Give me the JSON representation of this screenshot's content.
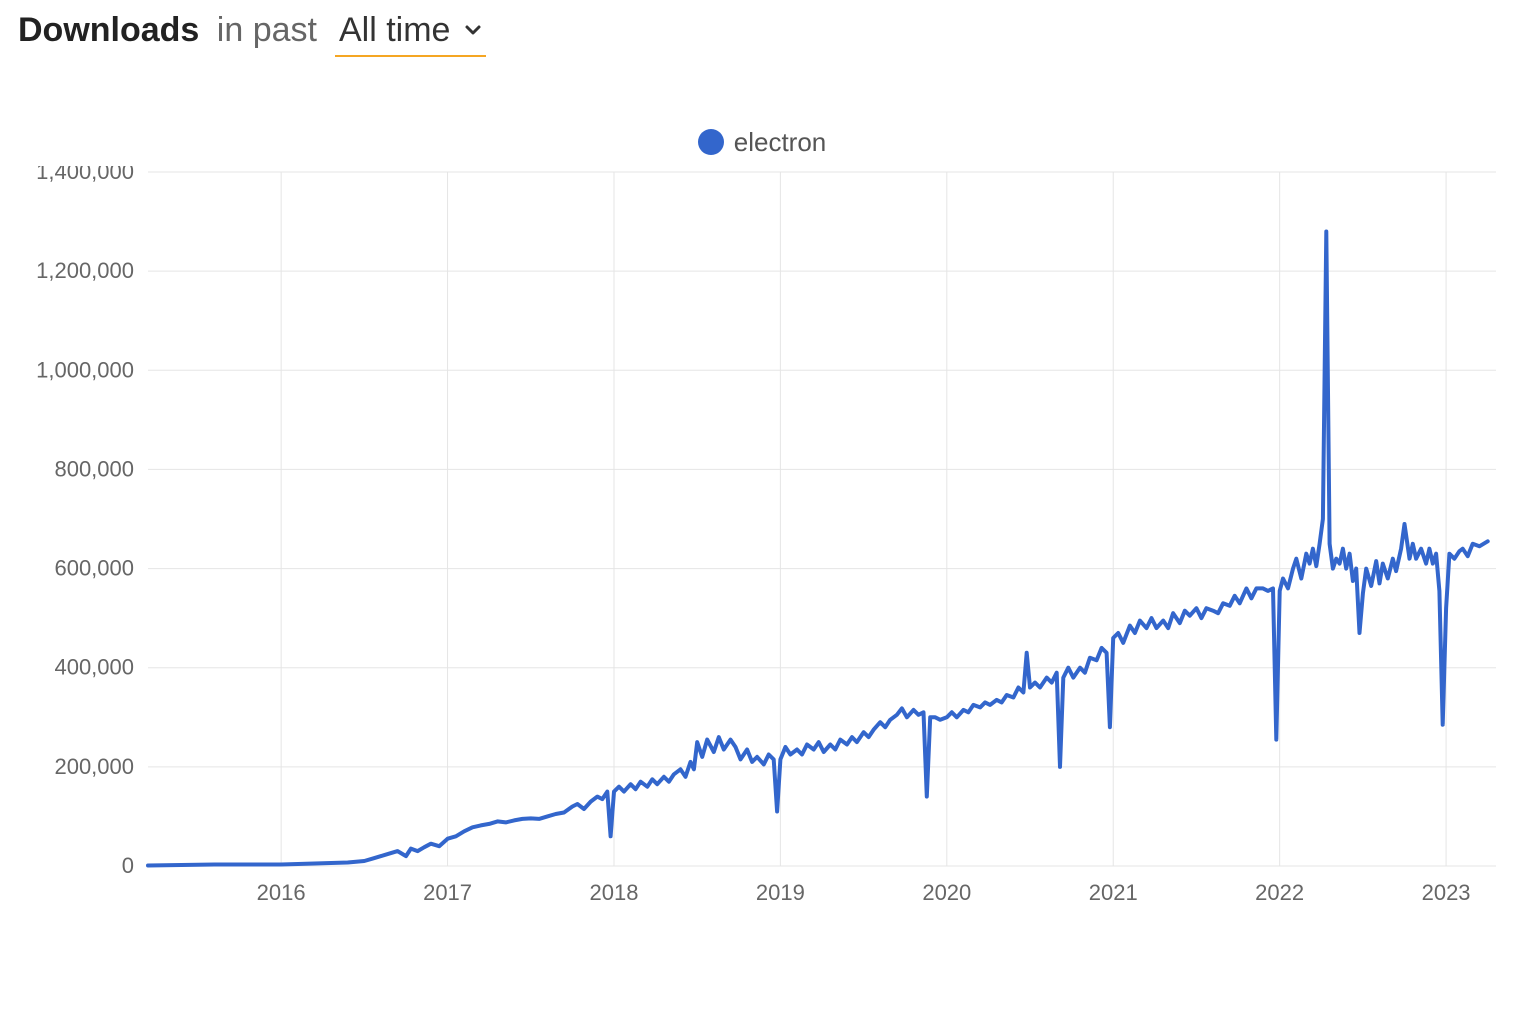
{
  "header": {
    "title_strong": "Downloads",
    "title_light": "in past",
    "dropdown_label": "All time"
  },
  "legend": {
    "items": [
      {
        "label": "electron",
        "color": "#3366cc"
      }
    ]
  },
  "chart": {
    "type": "line",
    "background_color": "#ffffff",
    "grid_color": "#e5e5e5",
    "axis_text_color": "#666666",
    "axis_fontsize": 22,
    "line_color": "#3366cc",
    "line_width": 4,
    "accent_underline_color": "#f5a623",
    "x": {
      "min": 2015.2,
      "max": 2023.3,
      "ticks": [
        2016,
        2017,
        2018,
        2019,
        2020,
        2021,
        2022,
        2023
      ],
      "tick_labels": [
        "2016",
        "2017",
        "2018",
        "2019",
        "2020",
        "2021",
        "2022",
        "2023"
      ]
    },
    "y": {
      "min": 0,
      "max": 1400000,
      "ticks": [
        0,
        200000,
        400000,
        600000,
        800000,
        1000000,
        1200000,
        1400000
      ],
      "tick_labels": [
        "0",
        "200,000",
        "400,000",
        "600,000",
        "800,000",
        "1,000,000",
        "1,200,000",
        "1,400,000"
      ]
    },
    "series": [
      {
        "name": "electron",
        "color": "#3366cc",
        "points": [
          [
            2015.2,
            1000
          ],
          [
            2015.3,
            1500
          ],
          [
            2015.4,
            2000
          ],
          [
            2015.5,
            2500
          ],
          [
            2015.6,
            3000
          ],
          [
            2015.7,
            3000
          ],
          [
            2015.8,
            3000
          ],
          [
            2015.9,
            3000
          ],
          [
            2016.0,
            3000
          ],
          [
            2016.1,
            4000
          ],
          [
            2016.2,
            5000
          ],
          [
            2016.3,
            6000
          ],
          [
            2016.4,
            7000
          ],
          [
            2016.5,
            10000
          ],
          [
            2016.55,
            15000
          ],
          [
            2016.6,
            20000
          ],
          [
            2016.65,
            25000
          ],
          [
            2016.7,
            30000
          ],
          [
            2016.75,
            20000
          ],
          [
            2016.78,
            35000
          ],
          [
            2016.82,
            30000
          ],
          [
            2016.86,
            38000
          ],
          [
            2016.9,
            45000
          ],
          [
            2016.95,
            40000
          ],
          [
            2017.0,
            55000
          ],
          [
            2017.05,
            60000
          ],
          [
            2017.1,
            70000
          ],
          [
            2017.15,
            78000
          ],
          [
            2017.2,
            82000
          ],
          [
            2017.25,
            85000
          ],
          [
            2017.3,
            90000
          ],
          [
            2017.35,
            88000
          ],
          [
            2017.4,
            92000
          ],
          [
            2017.45,
            95000
          ],
          [
            2017.5,
            96000
          ],
          [
            2017.55,
            95000
          ],
          [
            2017.6,
            100000
          ],
          [
            2017.65,
            105000
          ],
          [
            2017.7,
            108000
          ],
          [
            2017.75,
            120000
          ],
          [
            2017.78,
            125000
          ],
          [
            2017.82,
            115000
          ],
          [
            2017.86,
            130000
          ],
          [
            2017.9,
            140000
          ],
          [
            2017.93,
            135000
          ],
          [
            2017.96,
            150000
          ],
          [
            2017.98,
            60000
          ],
          [
            2018.0,
            150000
          ],
          [
            2018.03,
            160000
          ],
          [
            2018.06,
            150000
          ],
          [
            2018.1,
            165000
          ],
          [
            2018.13,
            155000
          ],
          [
            2018.16,
            170000
          ],
          [
            2018.2,
            160000
          ],
          [
            2018.23,
            175000
          ],
          [
            2018.26,
            165000
          ],
          [
            2018.3,
            180000
          ],
          [
            2018.33,
            170000
          ],
          [
            2018.36,
            185000
          ],
          [
            2018.4,
            195000
          ],
          [
            2018.43,
            180000
          ],
          [
            2018.46,
            210000
          ],
          [
            2018.48,
            195000
          ],
          [
            2018.5,
            250000
          ],
          [
            2018.53,
            220000
          ],
          [
            2018.56,
            255000
          ],
          [
            2018.6,
            230000
          ],
          [
            2018.63,
            260000
          ],
          [
            2018.66,
            235000
          ],
          [
            2018.7,
            255000
          ],
          [
            2018.73,
            240000
          ],
          [
            2018.76,
            215000
          ],
          [
            2018.8,
            235000
          ],
          [
            2018.83,
            210000
          ],
          [
            2018.86,
            220000
          ],
          [
            2018.9,
            205000
          ],
          [
            2018.93,
            225000
          ],
          [
            2018.96,
            215000
          ],
          [
            2018.98,
            110000
          ],
          [
            2019.0,
            215000
          ],
          [
            2019.03,
            240000
          ],
          [
            2019.06,
            225000
          ],
          [
            2019.1,
            235000
          ],
          [
            2019.13,
            225000
          ],
          [
            2019.16,
            245000
          ],
          [
            2019.2,
            235000
          ],
          [
            2019.23,
            250000
          ],
          [
            2019.26,
            230000
          ],
          [
            2019.3,
            245000
          ],
          [
            2019.33,
            235000
          ],
          [
            2019.36,
            255000
          ],
          [
            2019.4,
            245000
          ],
          [
            2019.43,
            260000
          ],
          [
            2019.46,
            250000
          ],
          [
            2019.5,
            270000
          ],
          [
            2019.53,
            260000
          ],
          [
            2019.56,
            275000
          ],
          [
            2019.6,
            290000
          ],
          [
            2019.63,
            280000
          ],
          [
            2019.66,
            295000
          ],
          [
            2019.7,
            305000
          ],
          [
            2019.73,
            318000
          ],
          [
            2019.76,
            300000
          ],
          [
            2019.8,
            315000
          ],
          [
            2019.83,
            305000
          ],
          [
            2019.86,
            310000
          ],
          [
            2019.88,
            140000
          ],
          [
            2019.9,
            300000
          ],
          [
            2019.93,
            300000
          ],
          [
            2019.96,
            295000
          ],
          [
            2020.0,
            300000
          ],
          [
            2020.03,
            310000
          ],
          [
            2020.06,
            300000
          ],
          [
            2020.1,
            315000
          ],
          [
            2020.13,
            310000
          ],
          [
            2020.16,
            325000
          ],
          [
            2020.2,
            320000
          ],
          [
            2020.23,
            330000
          ],
          [
            2020.26,
            325000
          ],
          [
            2020.3,
            335000
          ],
          [
            2020.33,
            330000
          ],
          [
            2020.36,
            345000
          ],
          [
            2020.4,
            340000
          ],
          [
            2020.43,
            360000
          ],
          [
            2020.46,
            350000
          ],
          [
            2020.48,
            430000
          ],
          [
            2020.5,
            360000
          ],
          [
            2020.53,
            370000
          ],
          [
            2020.56,
            360000
          ],
          [
            2020.6,
            380000
          ],
          [
            2020.63,
            370000
          ],
          [
            2020.66,
            390000
          ],
          [
            2020.68,
            200000
          ],
          [
            2020.7,
            380000
          ],
          [
            2020.73,
            400000
          ],
          [
            2020.76,
            380000
          ],
          [
            2020.8,
            400000
          ],
          [
            2020.83,
            390000
          ],
          [
            2020.86,
            420000
          ],
          [
            2020.9,
            415000
          ],
          [
            2020.93,
            440000
          ],
          [
            2020.96,
            430000
          ],
          [
            2020.98,
            280000
          ],
          [
            2021.0,
            460000
          ],
          [
            2021.03,
            470000
          ],
          [
            2021.06,
            450000
          ],
          [
            2021.1,
            485000
          ],
          [
            2021.13,
            470000
          ],
          [
            2021.16,
            495000
          ],
          [
            2021.2,
            480000
          ],
          [
            2021.23,
            500000
          ],
          [
            2021.26,
            480000
          ],
          [
            2021.3,
            495000
          ],
          [
            2021.33,
            480000
          ],
          [
            2021.36,
            510000
          ],
          [
            2021.4,
            490000
          ],
          [
            2021.43,
            515000
          ],
          [
            2021.46,
            505000
          ],
          [
            2021.5,
            520000
          ],
          [
            2021.53,
            500000
          ],
          [
            2021.56,
            520000
          ],
          [
            2021.6,
            515000
          ],
          [
            2021.63,
            510000
          ],
          [
            2021.66,
            530000
          ],
          [
            2021.7,
            525000
          ],
          [
            2021.73,
            545000
          ],
          [
            2021.76,
            530000
          ],
          [
            2021.8,
            560000
          ],
          [
            2021.83,
            540000
          ],
          [
            2021.86,
            560000
          ],
          [
            2021.9,
            560000
          ],
          [
            2021.93,
            555000
          ],
          [
            2021.96,
            560000
          ],
          [
            2021.98,
            255000
          ],
          [
            2022.0,
            555000
          ],
          [
            2022.02,
            580000
          ],
          [
            2022.05,
            560000
          ],
          [
            2022.08,
            600000
          ],
          [
            2022.1,
            620000
          ],
          [
            2022.13,
            580000
          ],
          [
            2022.16,
            630000
          ],
          [
            2022.18,
            610000
          ],
          [
            2022.2,
            640000
          ],
          [
            2022.22,
            605000
          ],
          [
            2022.24,
            650000
          ],
          [
            2022.26,
            700000
          ],
          [
            2022.28,
            1280000
          ],
          [
            2022.3,
            650000
          ],
          [
            2022.32,
            600000
          ],
          [
            2022.34,
            620000
          ],
          [
            2022.36,
            610000
          ],
          [
            2022.38,
            640000
          ],
          [
            2022.4,
            600000
          ],
          [
            2022.42,
            630000
          ],
          [
            2022.44,
            575000
          ],
          [
            2022.46,
            600000
          ],
          [
            2022.48,
            470000
          ],
          [
            2022.5,
            550000
          ],
          [
            2022.52,
            600000
          ],
          [
            2022.55,
            565000
          ],
          [
            2022.58,
            615000
          ],
          [
            2022.6,
            570000
          ],
          [
            2022.62,
            610000
          ],
          [
            2022.65,
            580000
          ],
          [
            2022.68,
            620000
          ],
          [
            2022.7,
            595000
          ],
          [
            2022.73,
            640000
          ],
          [
            2022.75,
            690000
          ],
          [
            2022.78,
            620000
          ],
          [
            2022.8,
            650000
          ],
          [
            2022.82,
            620000
          ],
          [
            2022.85,
            640000
          ],
          [
            2022.88,
            610000
          ],
          [
            2022.9,
            640000
          ],
          [
            2022.92,
            610000
          ],
          [
            2022.94,
            630000
          ],
          [
            2022.96,
            555000
          ],
          [
            2022.98,
            285000
          ],
          [
            2023.0,
            520000
          ],
          [
            2023.02,
            630000
          ],
          [
            2023.05,
            620000
          ],
          [
            2023.08,
            635000
          ],
          [
            2023.1,
            640000
          ],
          [
            2023.13,
            625000
          ],
          [
            2023.16,
            650000
          ],
          [
            2023.2,
            645000
          ],
          [
            2023.25,
            655000
          ]
        ]
      }
    ]
  }
}
